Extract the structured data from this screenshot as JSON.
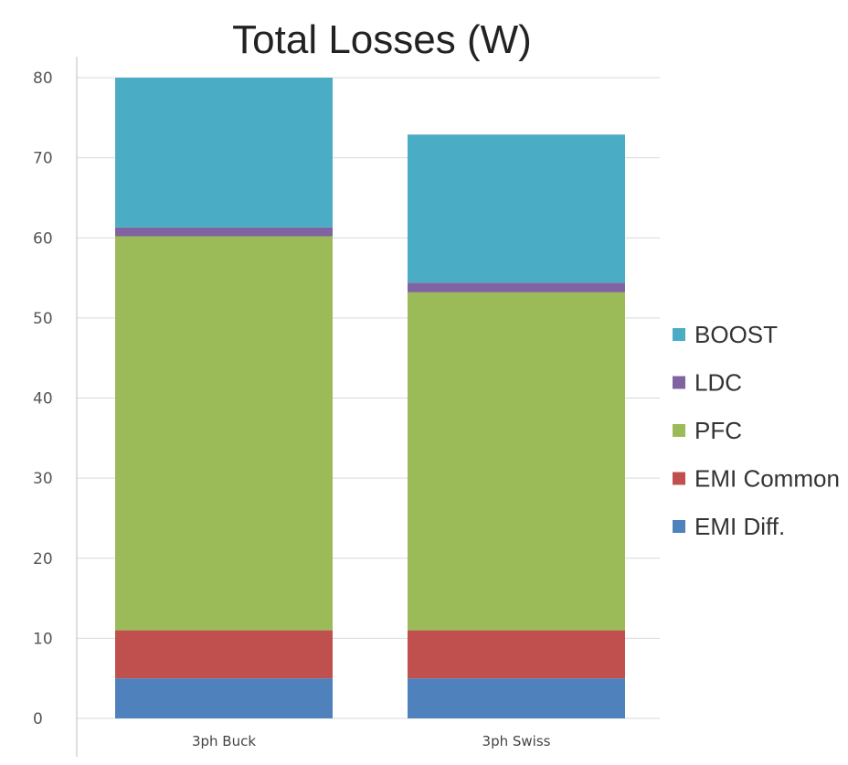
{
  "chart_data": {
    "type": "bar",
    "stacked": true,
    "title": "Total Losses (W)",
    "xlabel": "",
    "ylabel": "",
    "categories": [
      "3ph Buck",
      "3ph Swiss"
    ],
    "ylim": [
      0,
      80
    ],
    "yticks": [
      "0",
      "10",
      "20",
      "30",
      "40",
      "50",
      "60",
      "70",
      "80"
    ],
    "grid": true,
    "legend_position": "right",
    "series": [
      {
        "name": "EMI Diff.",
        "color": "#4F81BD",
        "values": [
          5,
          5
        ]
      },
      {
        "name": "EMI Common",
        "color": "#C0504D",
        "values": [
          6,
          6
        ]
      },
      {
        "name": "PFC",
        "color": "#9BBB59",
        "values": [
          49.2,
          42.2
        ]
      },
      {
        "name": "LDC",
        "color": "#8064A2",
        "values": [
          1.1,
          1.2
        ]
      },
      {
        "name": "BOOST",
        "color": "#4BACC6",
        "values": [
          18.7,
          18.5
        ]
      }
    ]
  }
}
